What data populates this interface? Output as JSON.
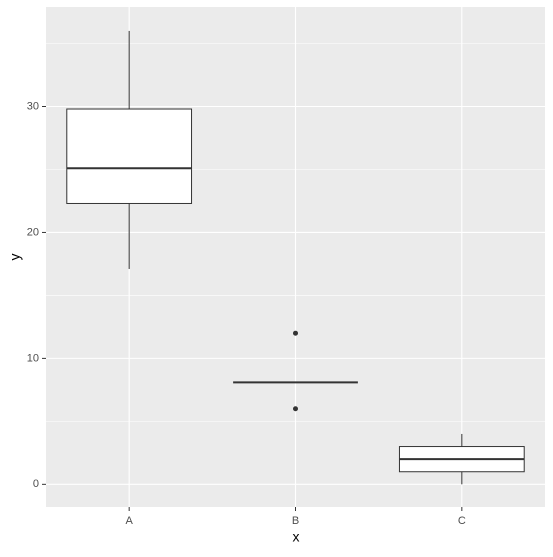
{
  "chart_data": {
    "type": "boxplot",
    "x_label": "x",
    "y_label": "y",
    "categories": [
      "A",
      "B",
      "C"
    ],
    "boxes": [
      {
        "min": 17.1,
        "q1": 22.3,
        "median": 25.1,
        "q3": 29.8,
        "max": 36.0,
        "outliers": []
      },
      {
        "min": 8.1,
        "q1": 8.1,
        "median": 8.1,
        "q3": 8.1,
        "max": 8.1,
        "outliers": [
          12.0,
          6.0
        ]
      },
      {
        "min": 0.0,
        "q1": 1.0,
        "median": 2.0,
        "q3": 3.0,
        "max": 4.0,
        "outliers": []
      }
    ],
    "ylim": [
      -1.8,
      37.9
    ],
    "yticks": [
      0,
      10,
      20,
      30
    ],
    "y_minor_ticks": [
      5,
      15,
      25,
      35
    ],
    "grid": true,
    "box_fill": "#ffffff",
    "line_color": "#333333",
    "panel_color": "#ebebeb"
  }
}
